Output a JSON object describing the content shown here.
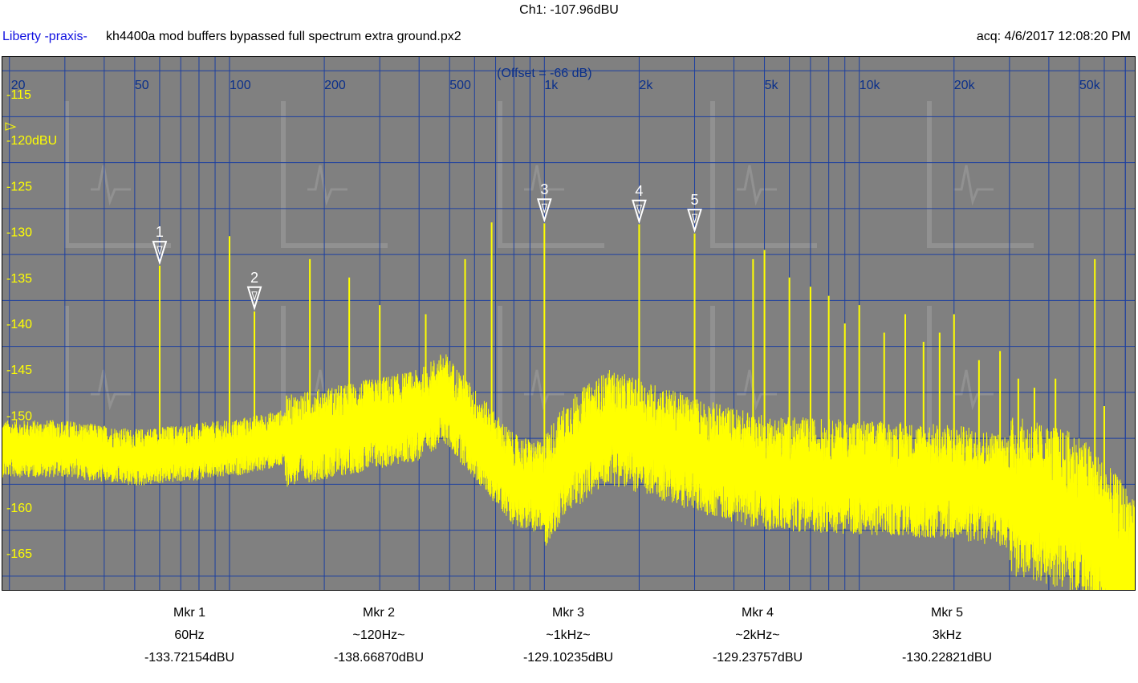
{
  "header": {
    "channel_readout": "Ch1: -107.96dBU",
    "app_name": "Liberty -praxis-",
    "file_title": "kh4400a mod buffers bypassed full spectrum extra ground.px2",
    "acquired": "acq: 4/6/2017 12:08:20 PM"
  },
  "colors": {
    "plot_bg": "#808080",
    "trace": "#ffff00",
    "grid": "#1c3fa0",
    "freq_label": "#0a2f8a",
    "db_label": "#ffff00",
    "app_name": "#1010e0"
  },
  "chart_data": {
    "type": "line",
    "title": "",
    "xlabel": "",
    "ylabel": "",
    "x_scale": "log",
    "xlim": [
      19,
      75000
    ],
    "ylim": [
      -169,
      -111
    ],
    "grid": true,
    "offset_note": "(Offset = -66 dB)",
    "reference_level": -120,
    "x_ticks": [
      {
        "value": 20,
        "label": "20"
      },
      {
        "value": 50,
        "label": "50"
      },
      {
        "value": 100,
        "label": "100"
      },
      {
        "value": 200,
        "label": "200"
      },
      {
        "value": 500,
        "label": "500"
      },
      {
        "value": 1000,
        "label": "1k"
      },
      {
        "value": 2000,
        "label": "2k"
      },
      {
        "value": 5000,
        "label": "5k"
      },
      {
        "value": 10000,
        "label": "10k"
      },
      {
        "value": 20000,
        "label": "20k"
      },
      {
        "value": 50000,
        "label": "50k"
      }
    ],
    "y_ticks": [
      {
        "value": -115,
        "label": "-115"
      },
      {
        "value": -120,
        "label": "-120dBU"
      },
      {
        "value": -125,
        "label": "-125"
      },
      {
        "value": -130,
        "label": "-130"
      },
      {
        "value": -135,
        "label": "-135"
      },
      {
        "value": -140,
        "label": "-140"
      },
      {
        "value": -145,
        "label": "-145"
      },
      {
        "value": -150,
        "label": "-150"
      },
      {
        "value": -155,
        "label": "-155"
      },
      {
        "value": -160,
        "label": "-160"
      },
      {
        "value": -165,
        "label": "-165"
      }
    ],
    "noise_floor": [
      [
        19,
        -153
      ],
      [
        30,
        -153
      ],
      [
        50,
        -154
      ],
      [
        100,
        -153
      ],
      [
        200,
        -151
      ],
      [
        400,
        -149
      ],
      [
        480,
        -147
      ],
      [
        600,
        -151
      ],
      [
        800,
        -156
      ],
      [
        1000,
        -157
      ],
      [
        1200,
        -153
      ],
      [
        1600,
        -150
      ],
      [
        2000,
        -151
      ],
      [
        3000,
        -153
      ],
      [
        5000,
        -155
      ],
      [
        10000,
        -155.5
      ],
      [
        20000,
        -156
      ],
      [
        30000,
        -157
      ],
      [
        40000,
        -158
      ],
      [
        50000,
        -159
      ],
      [
        60000,
        -162
      ],
      [
        72000,
        -165
      ]
    ],
    "peaks": [
      {
        "x": 60,
        "y": -133.7
      },
      {
        "x": 100,
        "y": -130.5
      },
      {
        "x": 120,
        "y": -138.7
      },
      {
        "x": 180,
        "y": -133
      },
      {
        "x": 240,
        "y": -135
      },
      {
        "x": 300,
        "y": -138
      },
      {
        "x": 420,
        "y": -139
      },
      {
        "x": 560,
        "y": -133
      },
      {
        "x": 680,
        "y": -129
      },
      {
        "x": 1000,
        "y": -129.1
      },
      {
        "x": 2000,
        "y": -129.2
      },
      {
        "x": 3000,
        "y": -130.2
      },
      {
        "x": 4600,
        "y": -133
      },
      {
        "x": 5000,
        "y": -132
      },
      {
        "x": 6000,
        "y": -135
      },
      {
        "x": 7000,
        "y": -136
      },
      {
        "x": 8000,
        "y": -137
      },
      {
        "x": 9000,
        "y": -140
      },
      {
        "x": 10000,
        "y": -138
      },
      {
        "x": 12000,
        "y": -141
      },
      {
        "x": 14000,
        "y": -139
      },
      {
        "x": 16000,
        "y": -142
      },
      {
        "x": 18000,
        "y": -141
      },
      {
        "x": 20000,
        "y": -139
      },
      {
        "x": 24000,
        "y": -144
      },
      {
        "x": 28000,
        "y": -143
      },
      {
        "x": 32000,
        "y": -146
      },
      {
        "x": 36000,
        "y": -147
      },
      {
        "x": 42000,
        "y": -146
      },
      {
        "x": 56000,
        "y": -133
      },
      {
        "x": 60000,
        "y": -149
      }
    ],
    "markers": [
      {
        "id": "1",
        "x": 60,
        "y": -133.72154,
        "label": "Mkr 1",
        "freq": "60Hz",
        "level": "-133.72154dBU"
      },
      {
        "id": "2",
        "x": 120,
        "y": -138.6687,
        "label": "Mkr 2",
        "freq": "~120Hz~",
        "level": "-138.66870dBU"
      },
      {
        "id": "3",
        "x": 1000,
        "y": -129.10235,
        "label": "Mkr 3",
        "freq": "~1kHz~",
        "level": "-129.10235dBU"
      },
      {
        "id": "4",
        "x": 2000,
        "y": -129.23757,
        "label": "Mkr 4",
        "freq": "~2kHz~",
        "level": "-129.23757dBU"
      },
      {
        "id": "5",
        "x": 3000,
        "y": -130.22821,
        "label": "Mkr 5",
        "freq": "3kHz",
        "level": "-130.22821dBU"
      }
    ]
  }
}
